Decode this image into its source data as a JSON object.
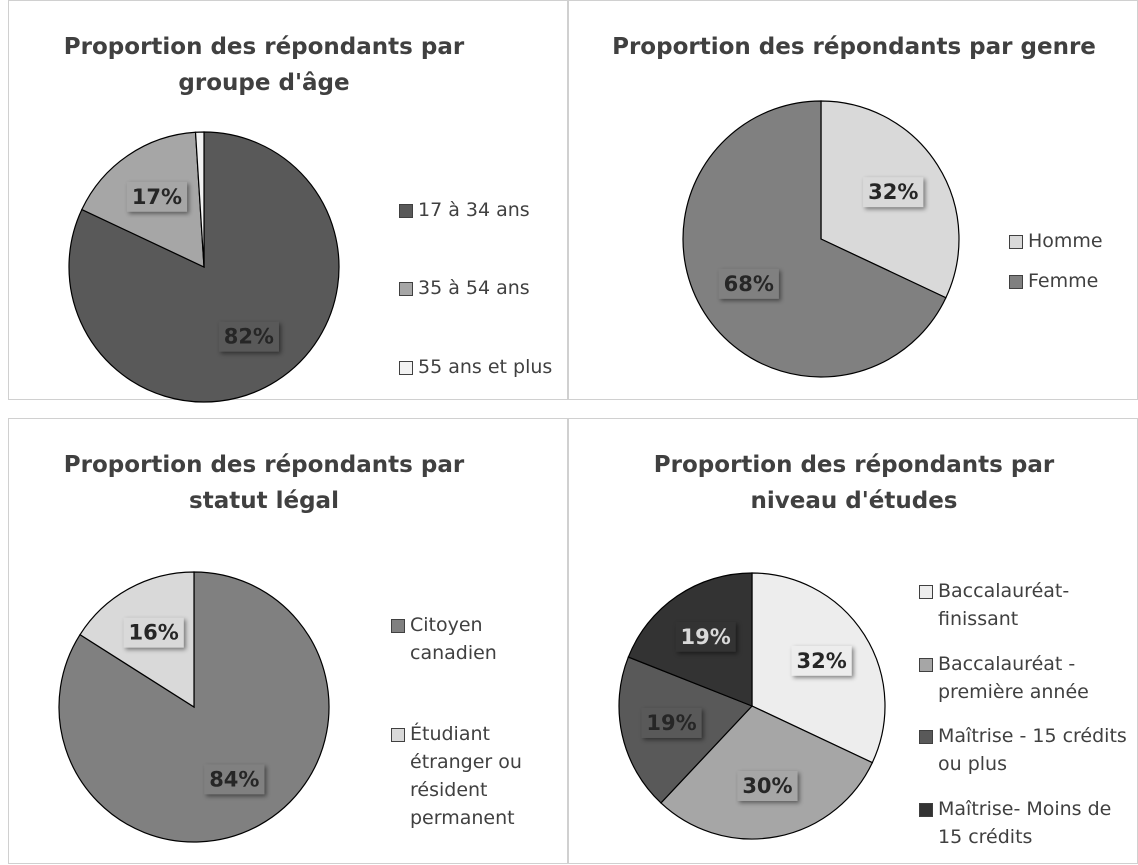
{
  "chart_data": [
    {
      "type": "pie",
      "title": "Proportion des répondants par groupe d'âge",
      "categories": [
        "17 à 34 ans",
        "35 à 54 ans",
        "55 ans et plus"
      ],
      "values": [
        82,
        17,
        1
      ],
      "value_labels": [
        "82%",
        "17%",
        null
      ],
      "colors": [
        "#595959",
        "#a6a6a6",
        "#f2f2f2"
      ]
    },
    {
      "type": "pie",
      "title": "Proportion des répondants par genre",
      "categories": [
        "Homme",
        "Femme"
      ],
      "values": [
        32,
        68
      ],
      "value_labels": [
        "32%",
        "68%"
      ],
      "colors": [
        "#d9d9d9",
        "#808080"
      ]
    },
    {
      "type": "pie",
      "title": "Proportion des répondants par statut légal",
      "categories": [
        "Citoyen canadien",
        "Étudiant étranger ou résident permanent"
      ],
      "values": [
        84,
        16
      ],
      "value_labels": [
        "84%",
        "16%"
      ],
      "colors": [
        "#808080",
        "#d9d9d9"
      ]
    },
    {
      "type": "pie",
      "title": "Proportion des répondants par niveau d'études",
      "categories": [
        "Baccalauréat- finissant",
        "Baccalauréat - première année",
        "Maîtrise - 15 crédits ou plus",
        "Maîtrise- Moins de 15 crédits"
      ],
      "values": [
        32,
        30,
        19,
        19
      ],
      "value_labels": [
        "32%",
        "30%",
        "19%",
        "19%"
      ],
      "colors": [
        "#ededed",
        "#a6a6a6",
        "#595959",
        "#333333"
      ]
    }
  ]
}
